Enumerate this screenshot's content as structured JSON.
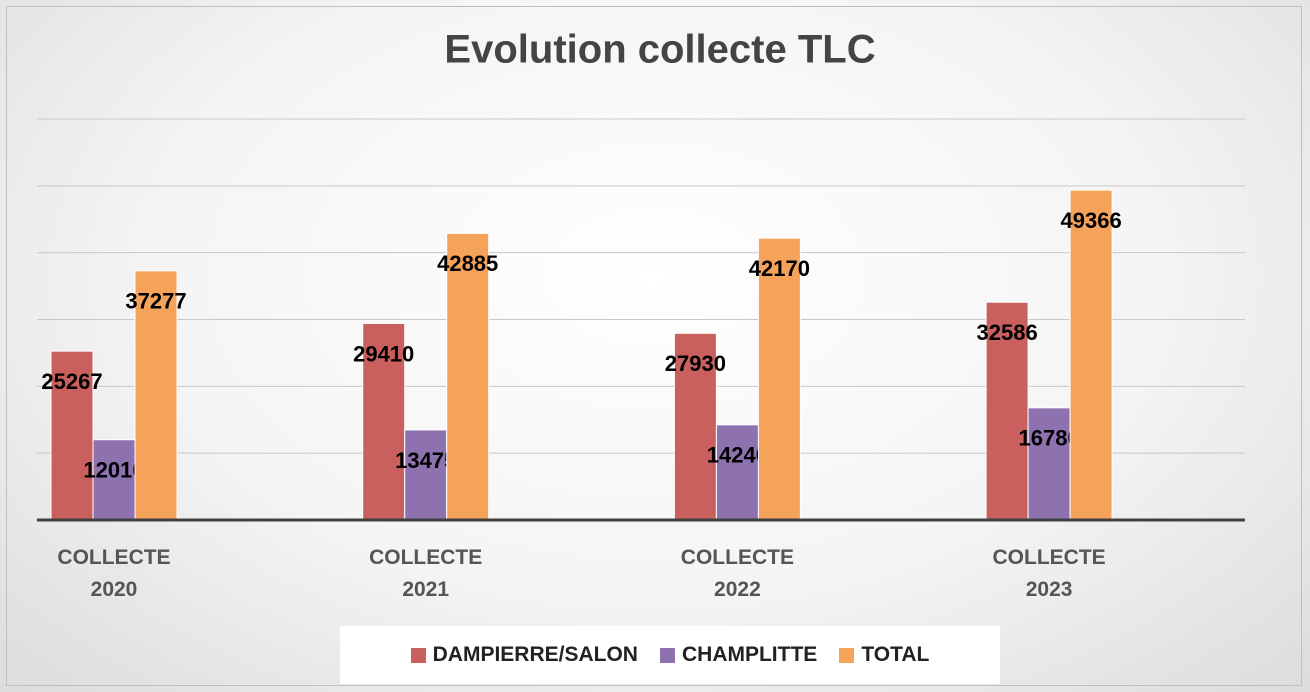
{
  "chart_data": {
    "type": "bar",
    "title": "Evolution collecte TLC",
    "categories": [
      "COLLECTE 2020",
      "COLLECTE 2021",
      "COLLECTE 2022",
      "COLLECTE 2023"
    ],
    "series": [
      {
        "name": "DAMPIERRE/SALON",
        "color": "#c9605d",
        "values": [
          25267,
          29410,
          27930,
          32586
        ]
      },
      {
        "name": "CHAMPLITTE",
        "color": "#8e72b0",
        "values": [
          12010,
          13475,
          14240,
          16780
        ]
      },
      {
        "name": "TOTAL",
        "color": "#f5a35a",
        "values": [
          37277,
          42885,
          42170,
          49366
        ]
      }
    ],
    "ylim": [
      0,
      60000
    ],
    "yticks": [
      0,
      10000,
      20000,
      30000,
      40000,
      50000,
      60000
    ],
    "grid": true,
    "legend": "bottom"
  }
}
